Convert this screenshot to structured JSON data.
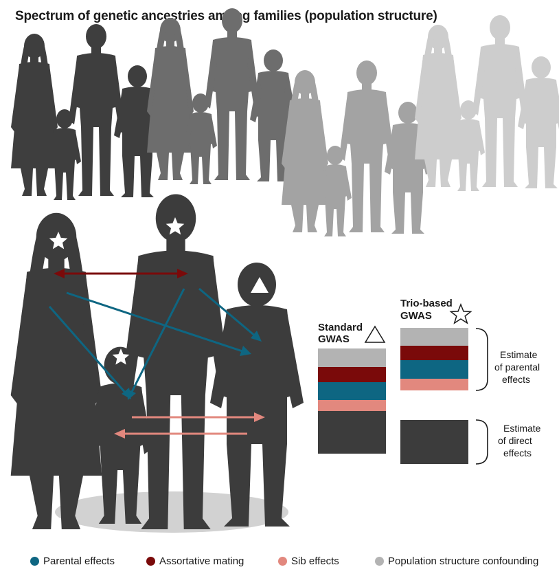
{
  "title": "Spectrum of genetic ancestries among families (population structure)",
  "colors": {
    "parental": "#0e6682",
    "assortative": "#7a0a0a",
    "sib": "#e2887e",
    "population": "#b3b3b3",
    "direct": "#3c3c3c",
    "family_dark": "#3c3c3c",
    "family_mid": "#6e6e6e",
    "family_light": "#9e9e9e",
    "family_lighter": "#c8c8c8"
  },
  "standard_gwas": {
    "label_line1": "Standard",
    "label_line2": "GWAS",
    "symbol": "triangle-icon"
  },
  "trio_gwas": {
    "label_line1": "Trio-based",
    "label_line2": "GWAS",
    "symbol": "star-icon"
  },
  "annotations": {
    "parental_line1": "Estimate",
    "parental_line2": "of parental",
    "parental_line3": "effects",
    "direct_line1": "Estimate",
    "direct_line2": "of direct",
    "direct_line3": "effects"
  },
  "legend": [
    {
      "label": "Parental effects",
      "color": "#0e6682"
    },
    {
      "label": "Assortative mating",
      "color": "#7a0a0a"
    },
    {
      "label": "Sib effects",
      "color": "#e2887e"
    },
    {
      "label": "Population structure confounding",
      "color": "#b3b3b3"
    }
  ]
}
